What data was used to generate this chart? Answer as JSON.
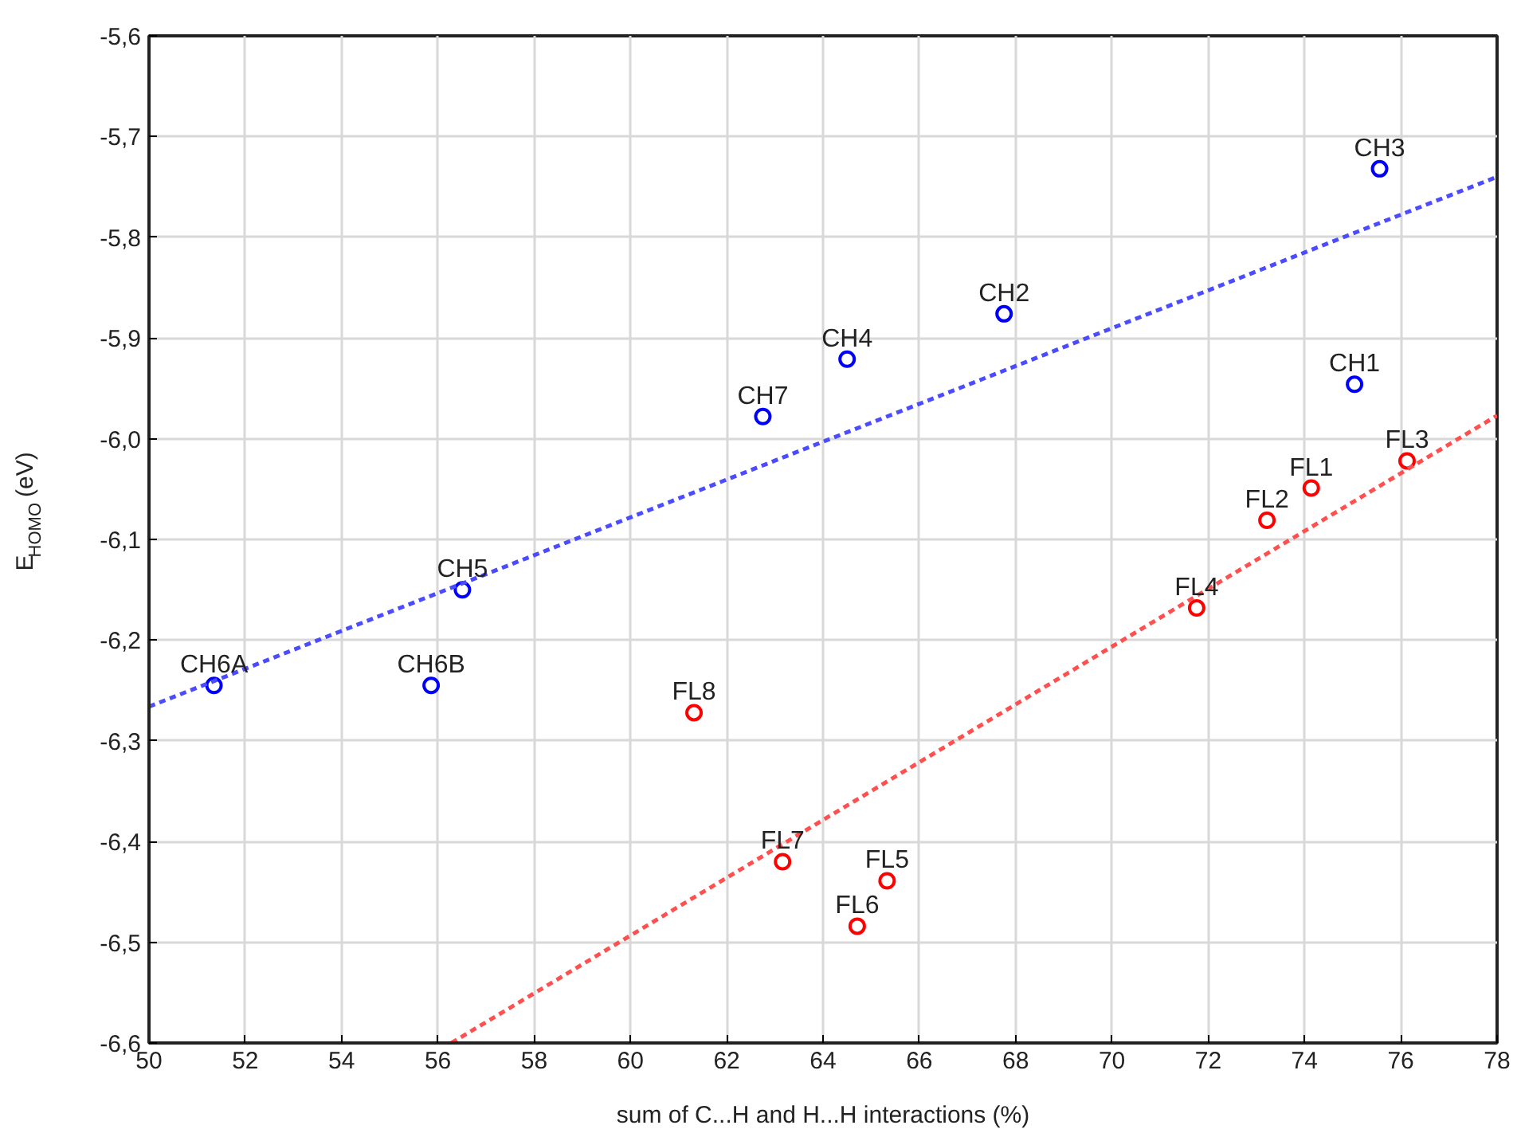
{
  "chart_data": {
    "type": "scatter",
    "xlabel": "sum of C...H and H...H interactions (%)",
    "ylabel": "E$_{HOMO}$ (eV)",
    "xlim": [
      50,
      78
    ],
    "ylim": [
      -6.6,
      -5.6
    ],
    "xticks": [
      50,
      52,
      54,
      56,
      58,
      60,
      62,
      64,
      66,
      68,
      70,
      72,
      74,
      76,
      78
    ],
    "yticks": [
      {
        "value": -6.6,
        "label": "-6,6"
      },
      {
        "value": -6.5,
        "label": "-6,5"
      },
      {
        "value": -6.4,
        "label": "-6,4"
      },
      {
        "value": -6.3,
        "label": "-6,3"
      },
      {
        "value": -6.2,
        "label": "-6,2"
      },
      {
        "value": -6.1,
        "label": "-6,1"
      },
      {
        "value": -6.0,
        "label": "-6,0"
      },
      {
        "value": -5.9,
        "label": "-5,9"
      },
      {
        "value": -5.8,
        "label": "-5,8"
      },
      {
        "value": -5.7,
        "label": "-5,7"
      },
      {
        "value": -5.6,
        "label": "-5,6"
      }
    ],
    "grid": true,
    "marker": "circle",
    "series": [
      {
        "color": "#0000ff",
        "x": [
          75.04,
          67.76,
          75.56,
          64.5,
          56.51,
          51.35,
          55.86,
          62.75
        ],
        "values": [
          -5.946,
          -5.876,
          -5.732,
          -5.921,
          -6.15,
          -6.245,
          -6.245,
          -5.978
        ]
      },
      {
        "color": "#ff0000",
        "x": [
          74.14,
          73.22,
          76.13,
          71.76,
          65.33,
          64.71,
          63.16,
          61.32
        ],
        "values": [
          -6.049,
          -6.081,
          -6.022,
          -6.168,
          -6.439,
          -6.484,
          -6.42,
          -6.272
        ]
      },
      {
        "type": "line",
        "color": "#4b4bff",
        "line_style": "dashed",
        "marker": "none",
        "x": [
          50,
          78
        ],
        "values": [
          -6.266,
          -5.74
        ]
      },
      {
        "type": "line",
        "color": "#ff5050",
        "line_style": "dashed",
        "marker": "none",
        "x": [
          56.28,
          78
        ],
        "values": [
          -6.6,
          -5.977
        ]
      }
    ],
    "annotations": [
      {
        "text": "CH1",
        "x": 75.04,
        "y": -5.946
      },
      {
        "text": "CH2",
        "x": 67.76,
        "y": -5.876
      },
      {
        "text": "CH3",
        "x": 75.56,
        "y": -5.732
      },
      {
        "text": "CH4",
        "x": 64.5,
        "y": -5.921
      },
      {
        "text": "CH5",
        "x": 56.51,
        "y": -6.15
      },
      {
        "text": "CH6A",
        "x": 51.35,
        "y": -6.245
      },
      {
        "text": "CH6B",
        "x": 55.86,
        "y": -6.245
      },
      {
        "text": "CH7",
        "x": 62.75,
        "y": -5.978
      },
      {
        "text": "FL1",
        "x": 74.14,
        "y": -6.049
      },
      {
        "text": "FL2",
        "x": 73.22,
        "y": -6.081
      },
      {
        "text": "FL3",
        "x": 76.13,
        "y": -6.022
      },
      {
        "text": "FL4",
        "x": 71.76,
        "y": -6.168
      },
      {
        "text": "FL5",
        "x": 65.33,
        "y": -6.439
      },
      {
        "text": "FL6",
        "x": 64.71,
        "y": -6.484
      },
      {
        "text": "FL7",
        "x": 63.16,
        "y": -6.42
      },
      {
        "text": "FL8",
        "x": 61.32,
        "y": -6.272
      }
    ]
  }
}
